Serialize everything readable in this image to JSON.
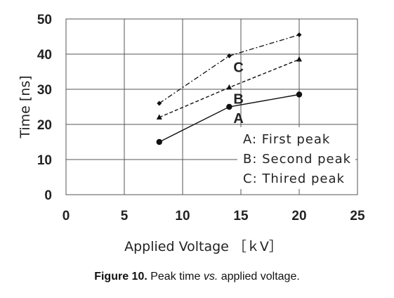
{
  "chart_data": {
    "type": "line",
    "xlabel": "Applied Voltage ［ｋV］",
    "ylabel": "Time [ns]",
    "xlim": [
      0,
      25
    ],
    "ylim": [
      0,
      50
    ],
    "xticks": [
      "0",
      "5",
      "10",
      "15",
      "20",
      "25"
    ],
    "yticks": [
      "0",
      "10",
      "20",
      "30",
      "40",
      "50"
    ],
    "grid": true,
    "series": [
      {
        "name": "A",
        "x": [
          8,
          14,
          20
        ],
        "y": [
          15,
          25,
          28.5
        ],
        "line": "solid",
        "marker": "circle"
      },
      {
        "name": "B",
        "x": [
          8,
          14,
          20
        ],
        "y": [
          22,
          30.5,
          38.5
        ],
        "line": "dashed",
        "marker": "triangle"
      },
      {
        "name": "C",
        "x": [
          8,
          14,
          20
        ],
        "y": [
          26,
          39.5,
          45.5
        ],
        "line": "dashdot",
        "marker": "diamond"
      }
    ],
    "legend": {
      "placement": "bottom-right",
      "entries": [
        "A: First peak",
        "B: Second peak",
        "C: Thired peak"
      ]
    }
  },
  "caption": {
    "label": "Figure 10.",
    "text_before": " Peak time ",
    "text_italic": "vs.",
    "text_after": " applied voltage."
  }
}
